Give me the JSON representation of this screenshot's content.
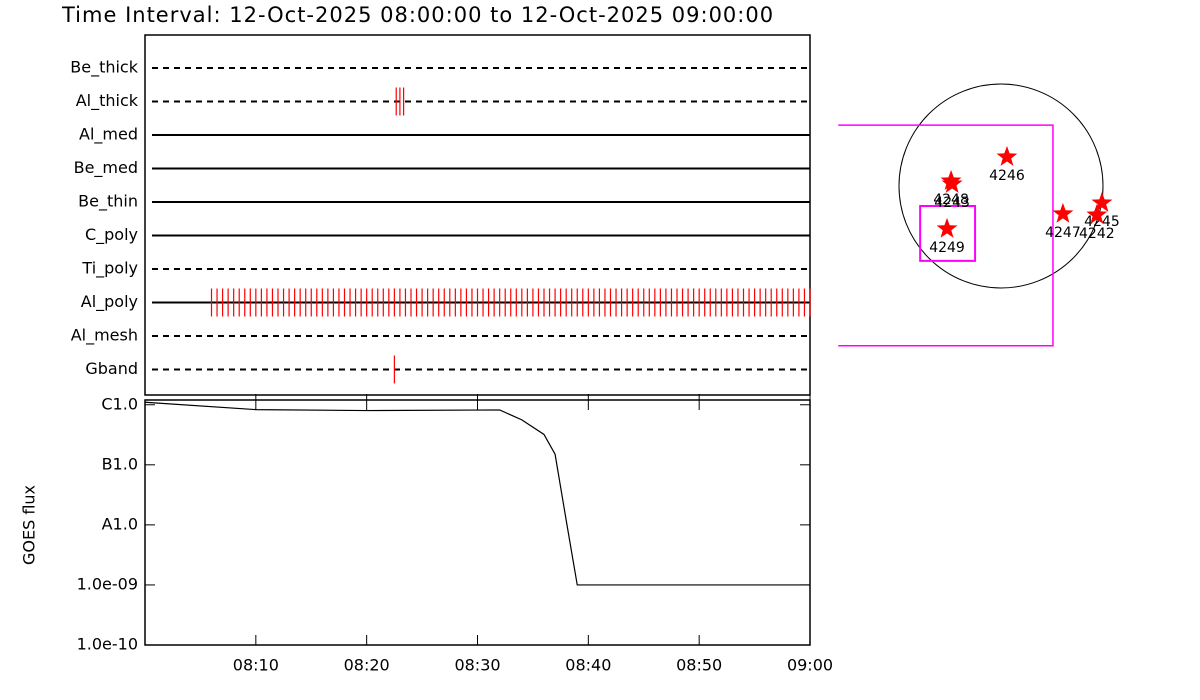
{
  "chart_data": [
    {
      "type": "timeline",
      "title": "Time Interval: 12-Oct-2025 08:00:00 to 12-Oct-2025 09:00:00",
      "xlim": [
        "08:00:00",
        "09:00:00"
      ],
      "series": [
        {
          "name": "Be_thick",
          "style": "dashed",
          "color": "#ff0000",
          "times": []
        },
        {
          "name": "Al_thick",
          "style": "dashed",
          "color": "#ff0000",
          "times": [
            "08:22:40",
            "08:23:00",
            "08:23:20"
          ]
        },
        {
          "name": "Al_med",
          "style": "solid",
          "color": "#ff0000",
          "times": []
        },
        {
          "name": "Be_med",
          "style": "solid",
          "color": "#ff0000",
          "times": []
        },
        {
          "name": "Be_thin",
          "style": "solid",
          "color": "#ff0000",
          "times": []
        },
        {
          "name": "C_poly",
          "style": "solid",
          "color": "#ff0000",
          "times": []
        },
        {
          "name": "Ti_poly",
          "style": "dashed",
          "color": "#ff0000",
          "times": []
        },
        {
          "name": "Al_poly",
          "style": "solid",
          "color": "#ff0000",
          "times": [
            "08:06:00",
            "08:06:30",
            "08:07:00",
            "08:07:30",
            "08:08:00",
            "08:08:30",
            "08:09:00",
            "08:09:30",
            "08:10:00",
            "08:10:30",
            "08:11:00",
            "08:11:30",
            "08:12:00",
            "08:12:30",
            "08:13:00",
            "08:13:30",
            "08:14:00",
            "08:14:30",
            "08:15:00",
            "08:15:30",
            "08:16:00",
            "08:16:30",
            "08:17:00",
            "08:17:30",
            "08:18:00",
            "08:18:30",
            "08:19:00",
            "08:19:30",
            "08:20:00",
            "08:20:30",
            "08:21:00",
            "08:21:30",
            "08:22:00",
            "08:22:30",
            "08:23:00",
            "08:23:30",
            "08:24:00",
            "08:24:30",
            "08:25:00",
            "08:25:30",
            "08:26:00",
            "08:26:30",
            "08:27:00",
            "08:27:30",
            "08:28:00",
            "08:28:30",
            "08:29:00",
            "08:29:30",
            "08:30:00",
            "08:30:30",
            "08:31:00",
            "08:31:30",
            "08:32:00",
            "08:32:30",
            "08:33:00",
            "08:33:30",
            "08:34:00",
            "08:34:30",
            "08:35:00",
            "08:35:30",
            "08:36:00",
            "08:36:30",
            "08:37:00",
            "08:37:30",
            "08:38:00",
            "08:38:30",
            "08:39:00",
            "08:39:30",
            "08:40:00",
            "08:40:30",
            "08:41:00",
            "08:41:30",
            "08:42:00",
            "08:42:30",
            "08:43:00",
            "08:43:30",
            "08:44:00",
            "08:44:30",
            "08:45:00",
            "08:45:30",
            "08:46:00",
            "08:46:30",
            "08:47:00",
            "08:47:30",
            "08:48:00",
            "08:48:30",
            "08:49:00",
            "08:49:30",
            "08:50:00",
            "08:50:30",
            "08:51:00",
            "08:51:30",
            "08:52:00",
            "08:52:30",
            "08:53:00",
            "08:53:30",
            "08:54:00",
            "08:54:30",
            "08:55:00",
            "08:55:30",
            "08:56:00",
            "08:56:30",
            "08:57:00",
            "08:57:30",
            "08:58:00",
            "08:58:30",
            "08:59:00",
            "08:59:30",
            "09:00:00"
          ]
        },
        {
          "name": "Al_mesh",
          "style": "dashed",
          "color": "#ff0000",
          "times": []
        },
        {
          "name": "Gband",
          "style": "dashed",
          "color": "#ff0000",
          "times": [
            "08:22:30"
          ]
        }
      ]
    },
    {
      "type": "line",
      "y_label": "GOES flux",
      "log_scale": true,
      "color": "#000000",
      "xlim": [
        "08:00:00",
        "09:00:00"
      ],
      "xticks": [
        "08:10",
        "08:20",
        "08:30",
        "08:40",
        "08:50",
        "09:00"
      ],
      "ylim": [
        1e-10,
        1.2e-06
      ],
      "yticks": [
        {
          "value": 1e-10,
          "label": "1.0e-10"
        },
        {
          "value": 1e-09,
          "label": "1.0e-09"
        },
        {
          "value": 1e-08,
          "label": "A1.0"
        },
        {
          "value": 1e-07,
          "label": "B1.0"
        },
        {
          "value": 1e-06,
          "label": "C1.0"
        }
      ],
      "x": [
        "08:00",
        "08:10",
        "08:20",
        "08:32",
        "08:34",
        "08:36",
        "08:37",
        "08:38",
        "08:39",
        "09:00"
      ],
      "values": [
        1.1e-06,
        8.3e-07,
        8e-07,
        8.2e-07,
        5.6e-07,
        3.2e-07,
        1.5e-07,
        1.2e-08,
        1e-09,
        1e-09
      ]
    },
    {
      "type": "scatter",
      "solar_radius": 960,
      "color": "#ff0000",
      "box_color": "#ff00ff",
      "labels": [
        "4248",
        "4243",
        "4246",
        "4249",
        "4247",
        "4245",
        "4242"
      ],
      "x": [
        -470,
        -460,
        56,
        -508,
        583,
        950,
        902
      ],
      "y": [
        47,
        19,
        273,
        -404,
        -263,
        -160,
        -273
      ],
      "boxes": [
        {
          "xlim": [
            -1532,
            489
          ],
          "ylim": [
            -1504,
            573
          ]
        },
        {
          "xlim": [
            -761,
            -244
          ],
          "ylim": [
            -705,
            -188
          ]
        }
      ]
    }
  ]
}
